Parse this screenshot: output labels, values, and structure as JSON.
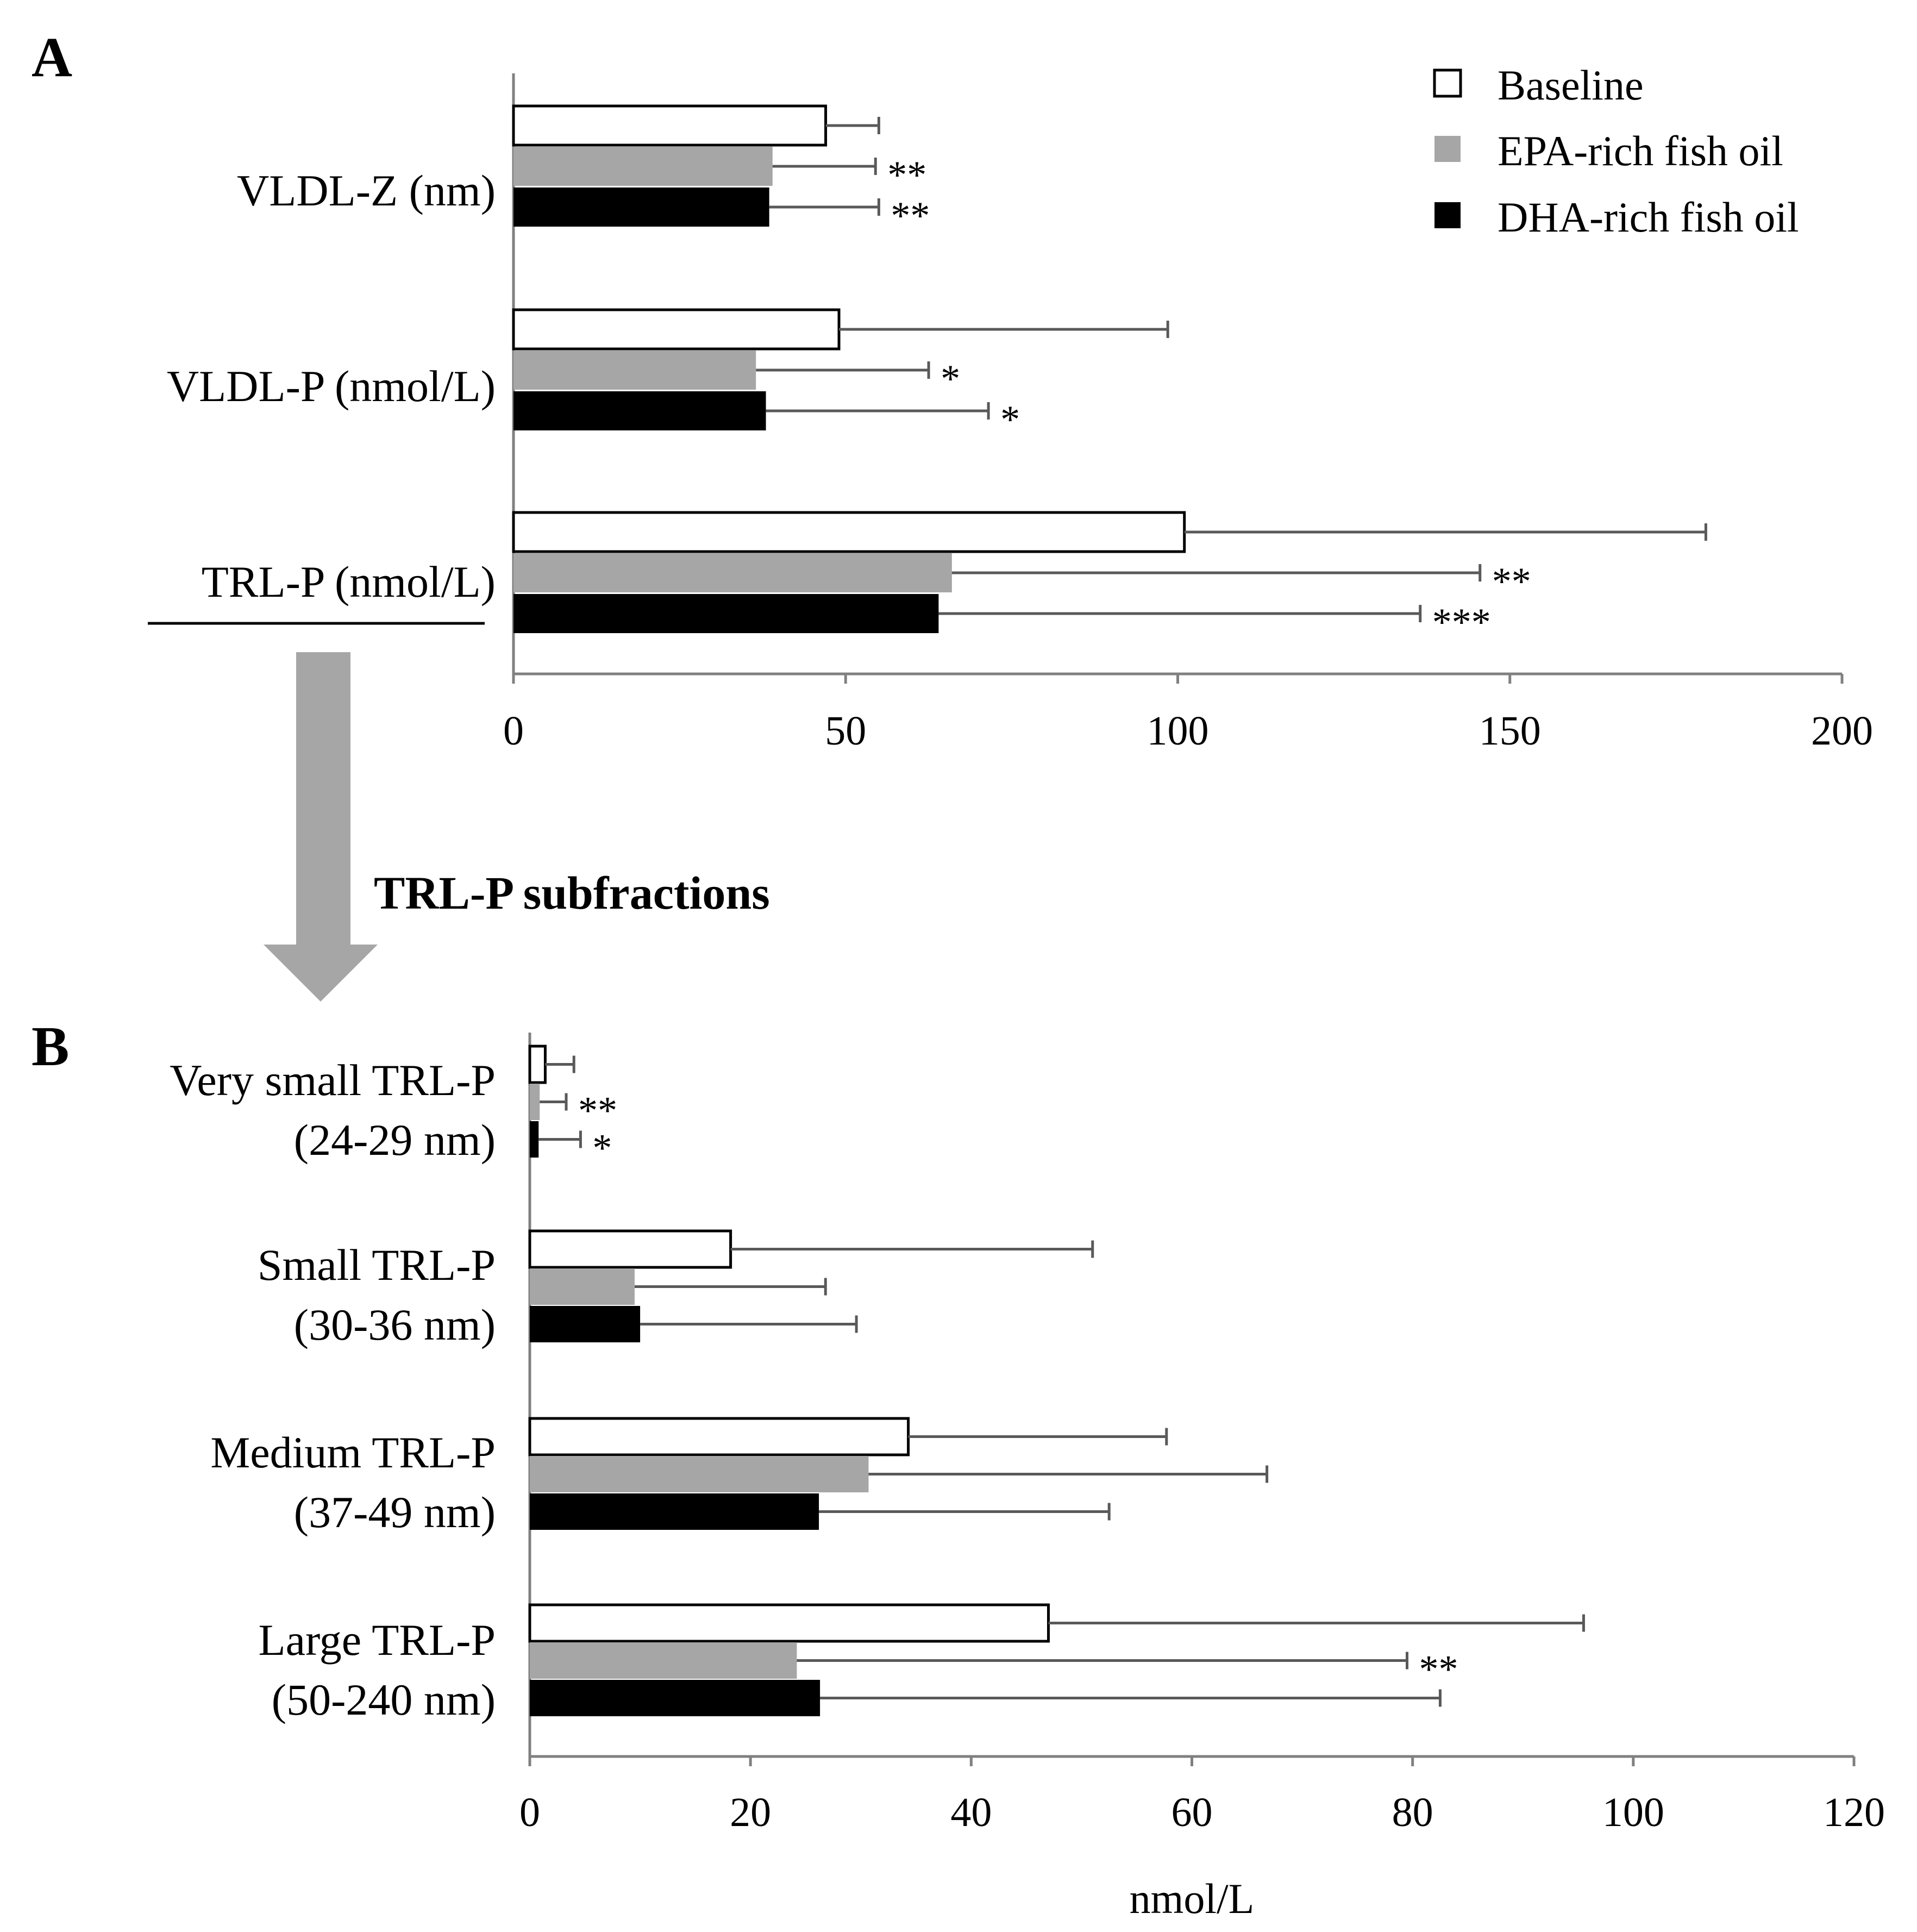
{
  "colors": {
    "baseline": "#ffffff",
    "epa": "#a6a6a6",
    "dha": "#000000",
    "axis": "#808080",
    "error": "#595959",
    "arrow": "#a6a6a6"
  },
  "legend": [
    {
      "key": "baseline",
      "label": "Baseline"
    },
    {
      "key": "epa",
      "label": "EPA-rich fish oil"
    },
    {
      "key": "dha",
      "label": "DHA-rich fish oil"
    }
  ],
  "arrow_label": "TRL-P subfractions",
  "chart_data": [
    {
      "panel": "A",
      "type": "bar",
      "orientation": "horizontal",
      "xlim": [
        0,
        200
      ],
      "xticks": [
        0,
        50,
        100,
        150,
        200
      ],
      "xlabel": "",
      "series_names": [
        "Baseline",
        "EPA-rich fish oil",
        "DHA-rich fish oil"
      ],
      "groups": [
        {
          "label_lines": [
            "VLDL-Z (nm)"
          ],
          "values": [
            47,
            39,
            38.5
          ],
          "errors": [
            55,
            54.5,
            55
          ],
          "sig": [
            "",
            "**",
            "**"
          ]
        },
        {
          "label_lines": [
            "VLDL-P (nmol/L)"
          ],
          "values": [
            49,
            36.5,
            38
          ],
          "errors": [
            98.5,
            62.5,
            71.5
          ],
          "sig": [
            "",
            "*",
            "*"
          ]
        },
        {
          "label_lines": [
            "TRL-P (nmol/L)"
          ],
          "values": [
            101,
            66,
            64
          ],
          "errors": [
            179.5,
            145.5,
            136.5
          ],
          "sig": [
            "",
            "**",
            "***"
          ]
        }
      ]
    },
    {
      "panel": "B",
      "type": "bar",
      "orientation": "horizontal",
      "xlim": [
        0,
        120
      ],
      "xticks": [
        0,
        20,
        40,
        60,
        80,
        100,
        120
      ],
      "xlabel": "nmol/L",
      "series_names": [
        "Baseline",
        "EPA-rich fish oil",
        "DHA-rich fish oil"
      ],
      "groups": [
        {
          "label_lines": [
            "Very small TRL-P",
            "(24-29 nm)"
          ],
          "values": [
            1.4,
            0.9,
            0.8
          ],
          "errors": [
            4,
            3.3,
            4.6
          ],
          "sig": [
            "",
            "**",
            "*"
          ]
        },
        {
          "label_lines": [
            "Small TRL-P",
            "(30-36 nm)"
          ],
          "values": [
            18.2,
            9.5,
            10
          ],
          "errors": [
            51,
            26.8,
            29.6
          ],
          "sig": [
            "",
            "",
            ""
          ]
        },
        {
          "label_lines": [
            "Medium TRL-P",
            "(37-49 nm)"
          ],
          "values": [
            34.3,
            30.7,
            26.2
          ],
          "errors": [
            57.7,
            66.8,
            52.5
          ],
          "sig": [
            "",
            "",
            ""
          ]
        },
        {
          "label_lines": [
            "Large TRL-P",
            "(50-240 nm)"
          ],
          "values": [
            47,
            24.2,
            26.3
          ],
          "errors": [
            95.5,
            79.5,
            82.5
          ],
          "sig": [
            "",
            "**",
            ""
          ]
        }
      ]
    }
  ]
}
